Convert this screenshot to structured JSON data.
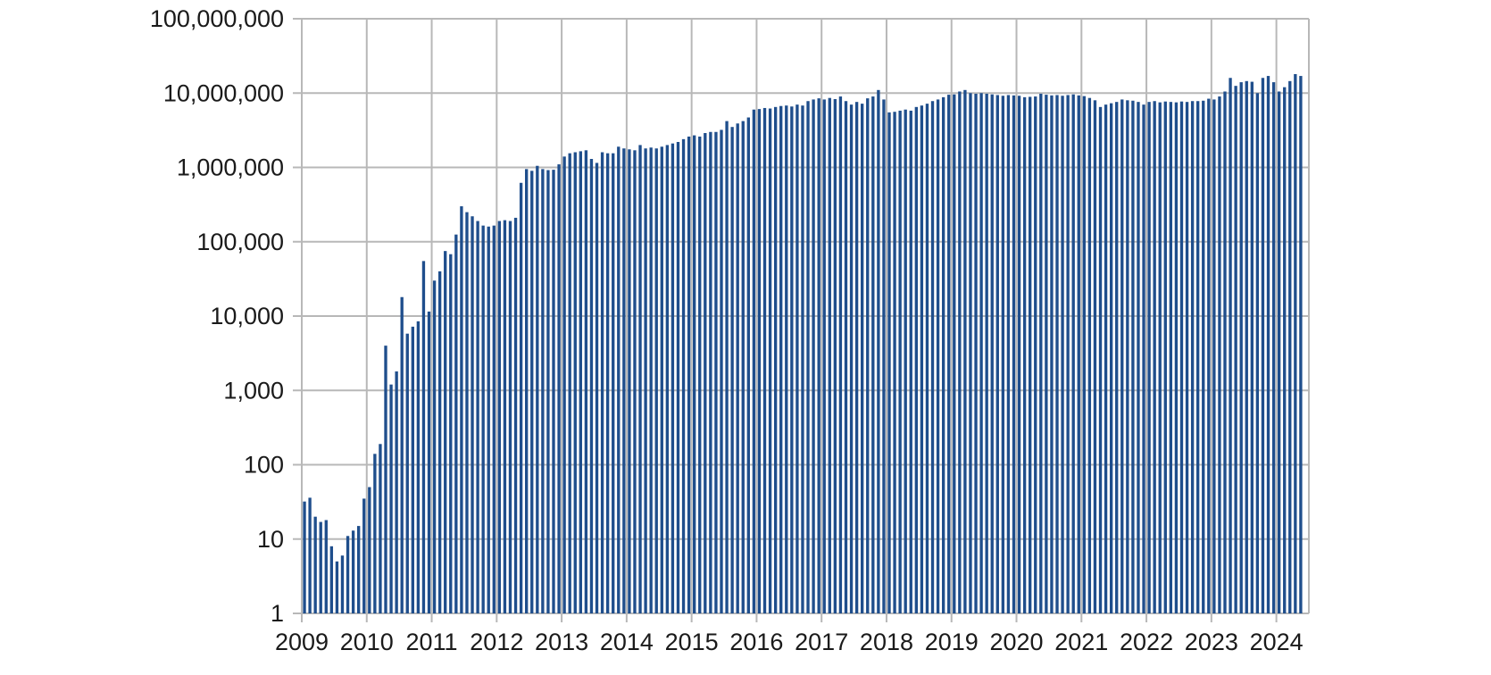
{
  "chart_data": {
    "type": "bar",
    "title": "",
    "xlabel": "",
    "ylabel": "",
    "y_scale": "log",
    "ylim": [
      1,
      100000000
    ],
    "xlim": [
      "2009-01",
      "2024-07"
    ],
    "grid": true,
    "bar_color": "#1f4e8c",
    "y_ticks": [
      {
        "value": 1,
        "label": "1"
      },
      {
        "value": 10,
        "label": "10"
      },
      {
        "value": 100,
        "label": "100"
      },
      {
        "value": 1000,
        "label": "1,000"
      },
      {
        "value": 10000,
        "label": "10,000"
      },
      {
        "value": 100000,
        "label": "100,000"
      },
      {
        "value": 1000000,
        "label": "1,000,000"
      },
      {
        "value": 10000000,
        "label": "10,000,000"
      },
      {
        "value": 100000000,
        "label": "100,000,000"
      }
    ],
    "x_ticks": [
      "2009",
      "2010",
      "2011",
      "2012",
      "2013",
      "2014",
      "2015",
      "2016",
      "2017",
      "2018",
      "2019",
      "2020",
      "2021",
      "2022",
      "2023",
      "2024"
    ],
    "start_month": "2009-01",
    "values": [
      32,
      36,
      20,
      17,
      18,
      8,
      5,
      6,
      11,
      13,
      15,
      35,
      50,
      140,
      190,
      4000,
      1200,
      1800,
      18000,
      5800,
      7200,
      8500,
      55000,
      11500,
      30000,
      40000,
      75000,
      68000,
      125000,
      300000,
      250000,
      220000,
      190000,
      165000,
      160000,
      165000,
      190000,
      195000,
      190000,
      210000,
      620000,
      950000,
      900000,
      1050000,
      950000,
      920000,
      930000,
      1100000,
      1400000,
      1550000,
      1600000,
      1650000,
      1700000,
      1300000,
      1150000,
      1600000,
      1550000,
      1550000,
      1900000,
      1800000,
      1750000,
      1700000,
      2000000,
      1800000,
      1850000,
      1800000,
      1900000,
      2000000,
      2100000,
      2200000,
      2400000,
      2600000,
      2700000,
      2600000,
      2900000,
      3000000,
      3000000,
      3200000,
      4200000,
      3500000,
      3900000,
      4200000,
      4700000,
      6000000,
      6100000,
      6300000,
      6200000,
      6500000,
      6700000,
      6800000,
      6600000,
      7000000,
      6800000,
      7800000,
      8200000,
      8500000,
      8200000,
      8600000,
      8300000,
      9000000,
      7800000,
      7000000,
      7600000,
      7200000,
      8500000,
      9000000,
      11000000,
      8200000,
      5500000,
      5600000,
      5800000,
      6000000,
      5800000,
      6500000,
      6800000,
      7200000,
      7800000,
      8200000,
      8800000,
      9500000,
      9600000,
      10500000,
      11000000,
      10000000,
      9800000,
      10000000,
      9800000,
      9600000,
      9400000,
      9200000,
      9400000,
      9300000,
      9200000,
      8800000,
      8900000,
      9000000,
      9800000,
      9500000,
      9300000,
      9400000,
      9200000,
      9400000,
      9600000,
      9300000,
      9100000,
      8600000,
      8000000,
      6500000,
      7000000,
      7300000,
      7600000,
      8200000,
      8000000,
      7900000,
      7600000,
      7000000,
      7600000,
      7800000,
      7500000,
      7700000,
      7600000,
      7500000,
      7700000,
      7600000,
      7800000,
      7800000,
      7900000,
      8400000,
      8200000,
      9000000,
      10500000,
      16000000,
      12500000,
      14000000,
      14500000,
      14200000,
      10000000,
      16000000,
      17000000,
      14000000,
      10500000,
      12000000,
      14500000,
      18000000,
      17000000
    ]
  }
}
